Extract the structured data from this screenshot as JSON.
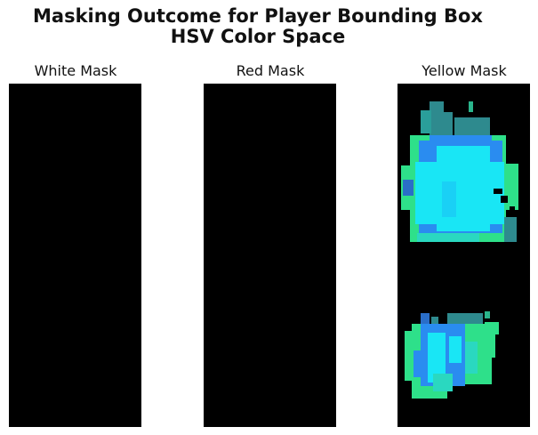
{
  "figure": {
    "title_line1": "Masking Outcome for Player Bounding Box",
    "title_line2": "HSV Color Space"
  },
  "panels": [
    {
      "title": "White Mask",
      "content": "all-black"
    },
    {
      "title": "Red Mask",
      "content": "all-black"
    },
    {
      "title": "Yellow Mask",
      "content": "cyan/green pixelated blobs (shirt and shorts region)"
    }
  ],
  "colors": {
    "background": "#000000",
    "cyan": "#19e6f5",
    "blue": "#2a8cf0",
    "green": "#2ee08a",
    "teal": "#2e8a8e"
  }
}
